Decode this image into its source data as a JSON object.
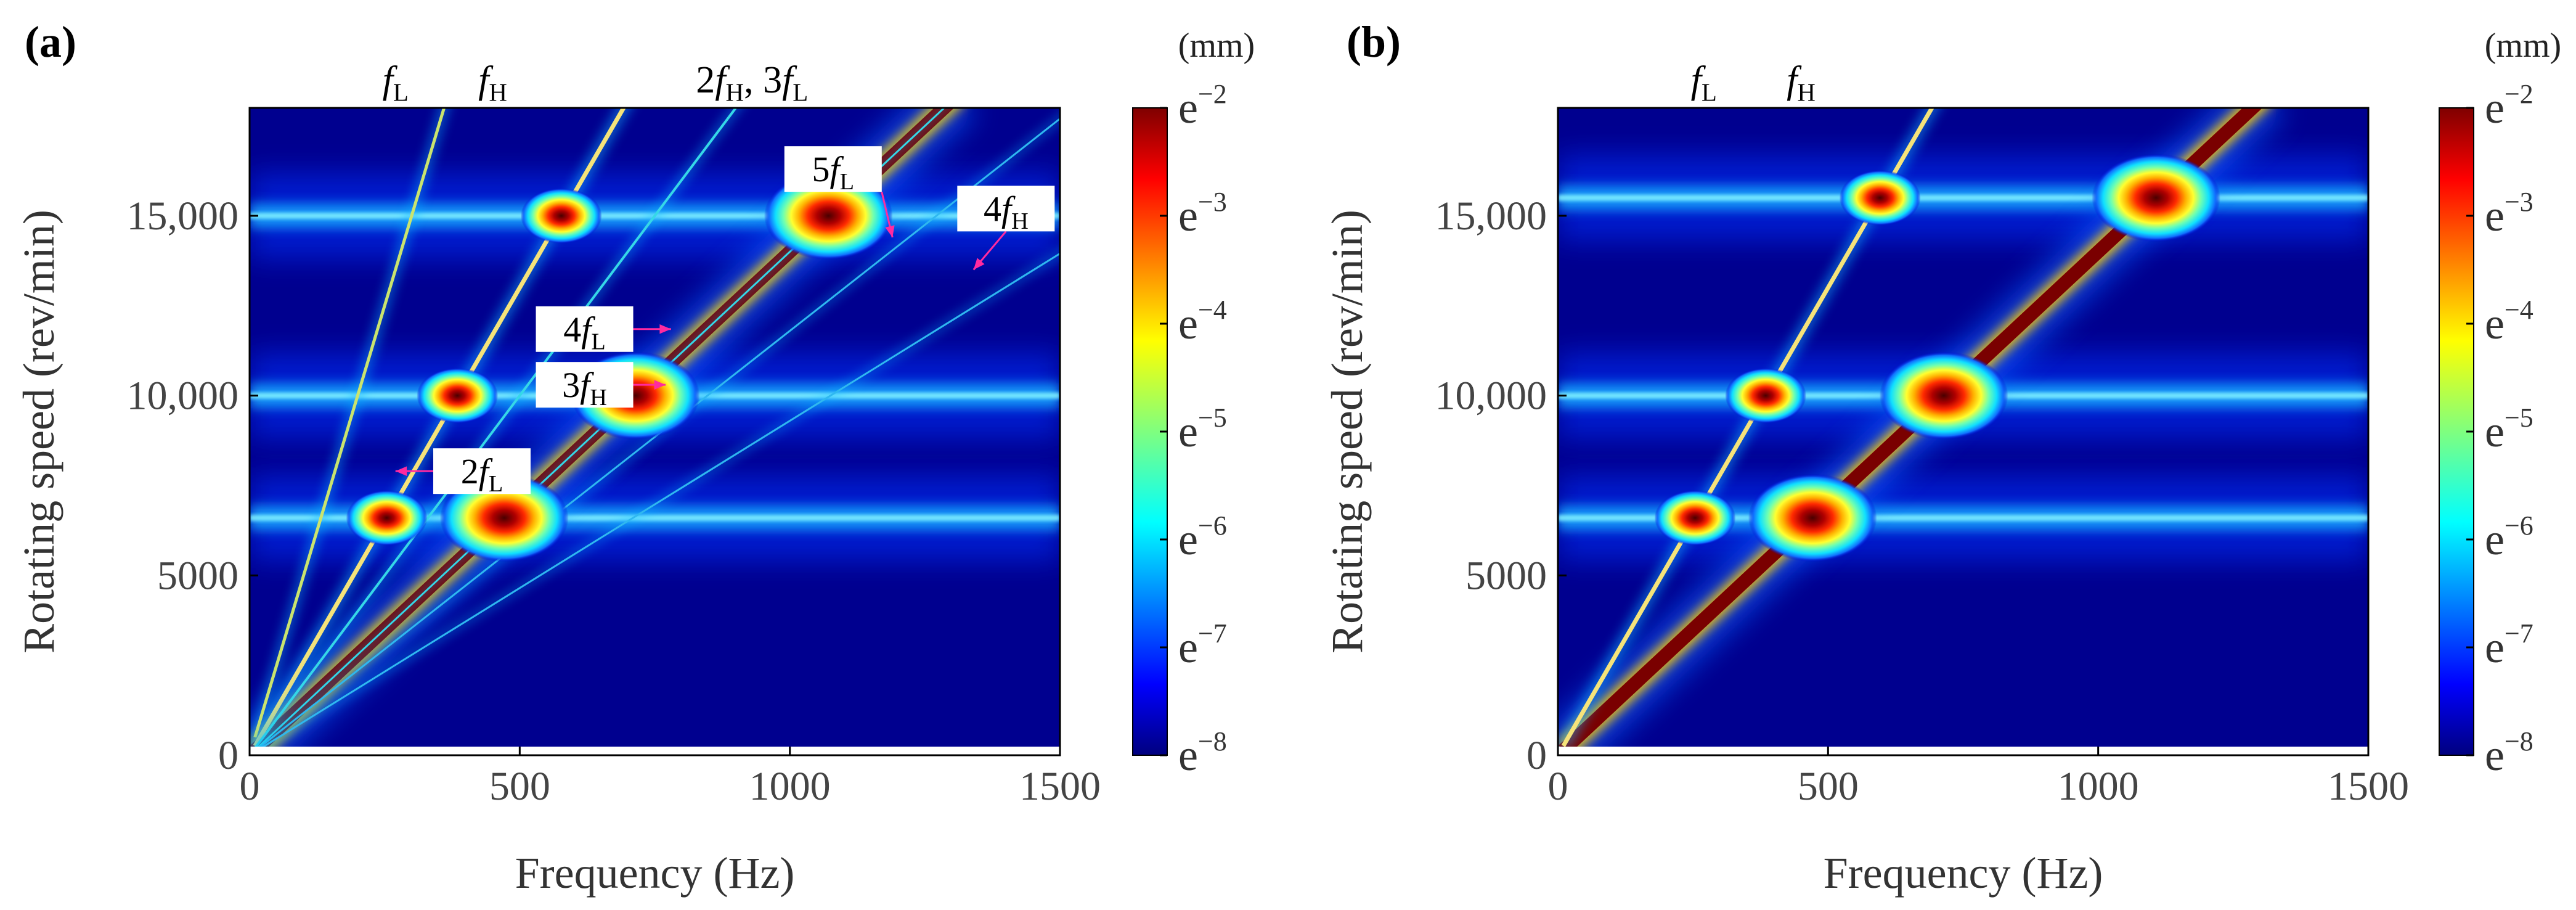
{
  "chart_data": [
    {
      "type": "heatmap",
      "panel_label": "(a)",
      "xlabel": "Frequency (Hz)",
      "ylabel": "Rotating speed (rev/min)",
      "xlim": [
        0,
        1500
      ],
      "ylim": [
        0,
        18000
      ],
      "x_ticks": [
        {
          "value": 0,
          "label": "0"
        },
        {
          "value": 500,
          "label": "500"
        },
        {
          "value": 1000,
          "label": "1000"
        },
        {
          "value": 1500,
          "label": "1500"
        }
      ],
      "y_ticks": [
        {
          "value": 0,
          "label": "0"
        },
        {
          "value": 5000,
          "label": "5000"
        },
        {
          "value": 10000,
          "label": "10,000"
        },
        {
          "value": 15000,
          "label": "15,000"
        }
      ],
      "colorbar": {
        "unit": "(mm)",
        "colormap": "jet",
        "ticks": [
          {
            "exp": -2,
            "label": "e",
            "sup": "−2"
          },
          {
            "exp": -3,
            "label": "e",
            "sup": "−3"
          },
          {
            "exp": -4,
            "label": "e",
            "sup": "−4"
          },
          {
            "exp": -5,
            "label": "e",
            "sup": "−5"
          },
          {
            "exp": -6,
            "label": "e",
            "sup": "−6"
          },
          {
            "exp": -7,
            "label": "e",
            "sup": "−7"
          },
          {
            "exp": -8,
            "label": "e",
            "sup": "−8"
          }
        ]
      },
      "resonance_speeds": [
        6600,
        10000,
        15000
      ],
      "harmonic_lines": [
        {
          "slope": 14.0,
          "width": 22,
          "color": "#7a0000"
        },
        {
          "slope": 26.0,
          "width": 7,
          "color": "#f5e37a"
        },
        {
          "slope": 50.0,
          "width": 5,
          "color": "#c9e46e"
        },
        {
          "slope": 20.0,
          "width": 4,
          "color": "#35d8e8"
        },
        {
          "slope": 14.0,
          "width": 3,
          "color": "#35d8e8"
        },
        {
          "slope": 11.8,
          "width": 3,
          "color": "#2fb8f0"
        },
        {
          "slope": 9.3,
          "width": 3,
          "color": "#2fb8f0"
        }
      ],
      "top_labels": [
        {
          "parts": [
            {
              "t": "f",
              "i": true
            },
            {
              "t": "L",
              "sub": true
            }
          ],
          "x": 270
        },
        {
          "parts": [
            {
              "t": "f",
              "i": true
            },
            {
              "t": "H",
              "sub": true
            }
          ],
          "x": 450
        },
        {
          "parts": [
            {
              "t": "2"
            },
            {
              "t": "f",
              "i": true
            },
            {
              "t": "H",
              "sub": true
            },
            {
              "t": ", 3"
            },
            {
              "t": "f",
              "i": true
            },
            {
              "t": "L",
              "sub": true
            }
          ],
          "x": 930
        }
      ],
      "annotations": [
        {
          "parts": [
            {
              "t": "5"
            },
            {
              "t": "f",
              "i": true
            },
            {
              "t": "L",
              "sub": true
            }
          ],
          "box_x": 1080,
          "box_y": 16300,
          "arrow_to": [
            1190,
            14400
          ]
        },
        {
          "parts": [
            {
              "t": "4"
            },
            {
              "t": "f",
              "i": true
            },
            {
              "t": "H",
              "sub": true
            }
          ],
          "box_x": 1400,
          "box_y": 15200,
          "arrow_to": [
            1340,
            13500
          ]
        },
        {
          "parts": [
            {
              "t": "4"
            },
            {
              "t": "f",
              "i": true
            },
            {
              "t": "L",
              "sub": true
            }
          ],
          "box_x": 620,
          "box_y": 11850,
          "arrow_to": [
            780,
            11850
          ]
        },
        {
          "parts": [
            {
              "t": "3"
            },
            {
              "t": "f",
              "i": true
            },
            {
              "t": "H",
              "sub": true
            }
          ],
          "box_x": 620,
          "box_y": 10300,
          "arrow_to": [
            770,
            10300
          ]
        },
        {
          "parts": [
            {
              "t": "2"
            },
            {
              "t": "f",
              "i": true
            },
            {
              "t": "L",
              "sub": true
            }
          ],
          "box_x": 430,
          "box_y": 7900,
          "arrow_to": [
            270,
            7900
          ]
        }
      ]
    },
    {
      "type": "heatmap",
      "panel_label": "(b)",
      "xlabel": "Frequency (Hz)",
      "ylabel": "Rotating speed (rev/min)",
      "xlim": [
        0,
        1500
      ],
      "ylim": [
        0,
        18000
      ],
      "x_ticks": [
        {
          "value": 0,
          "label": "0"
        },
        {
          "value": 500,
          "label": "500"
        },
        {
          "value": 1000,
          "label": "1000"
        },
        {
          "value": 1500,
          "label": "1500"
        }
      ],
      "y_ticks": [
        {
          "value": 0,
          "label": "0"
        },
        {
          "value": 5000,
          "label": "5000"
        },
        {
          "value": 10000,
          "label": "10,000"
        },
        {
          "value": 15000,
          "label": "15,000"
        }
      ],
      "colorbar": {
        "unit": "(mm)",
        "colormap": "jet",
        "ticks": [
          {
            "exp": -2,
            "label": "e",
            "sup": "−2"
          },
          {
            "exp": -3,
            "label": "e",
            "sup": "−3"
          },
          {
            "exp": -4,
            "label": "e",
            "sup": "−4"
          },
          {
            "exp": -5,
            "label": "e",
            "sup": "−5"
          },
          {
            "exp": -6,
            "label": "e",
            "sup": "−6"
          },
          {
            "exp": -7,
            "label": "e",
            "sup": "−7"
          },
          {
            "exp": -8,
            "label": "e",
            "sup": "−8"
          }
        ]
      },
      "resonance_speeds": [
        6600,
        10000,
        15500
      ],
      "harmonic_lines": [
        {
          "slope": 14.0,
          "width": 22,
          "color": "#7a0000"
        },
        {
          "slope": 26.0,
          "width": 7,
          "color": "#f5e37a"
        }
      ],
      "top_labels": [
        {
          "parts": [
            {
              "t": "f",
              "i": true
            },
            {
              "t": "L",
              "sub": true
            }
          ],
          "x": 270
        },
        {
          "parts": [
            {
              "t": "f",
              "i": true
            },
            {
              "t": "H",
              "sub": true
            }
          ],
          "x": 450
        }
      ],
      "annotations": []
    }
  ]
}
